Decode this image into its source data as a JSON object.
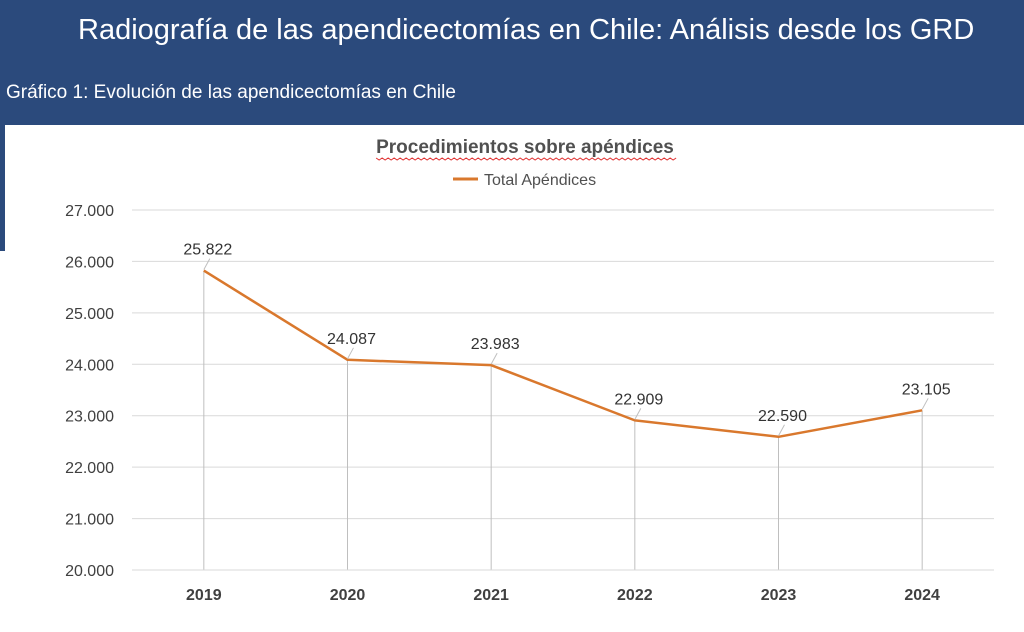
{
  "header": {
    "title": "Radiografía de las apendicectomías en Chile: Análisis desde los GRD",
    "subtitle": "Gráfico 1: Evolución de las apendicectomías en Chile"
  },
  "colors": {
    "banner": "#2b4a7c",
    "series": "#d9782d",
    "grid": "#d9d9d9",
    "drop_line": "#bfbfbf"
  },
  "chart_data": {
    "type": "line",
    "title": "Procedimientos sobre apéndices",
    "legend_position": "top",
    "grid": true,
    "categories": [
      "2019",
      "2020",
      "2021",
      "2022",
      "2023",
      "2024"
    ],
    "series": [
      {
        "name": "Total Apéndices",
        "values": [
          25822,
          24087,
          23983,
          22909,
          22590,
          23105
        ],
        "labels": [
          "25.822",
          "24.087",
          "23.983",
          "22.909",
          "22.590",
          "23.105"
        ]
      }
    ],
    "y_ticks": [
      "20.000",
      "21.000",
      "22.000",
      "23.000",
      "24.000",
      "25.000",
      "26.000",
      "27.000"
    ],
    "ylim": [
      20000,
      27000
    ]
  }
}
